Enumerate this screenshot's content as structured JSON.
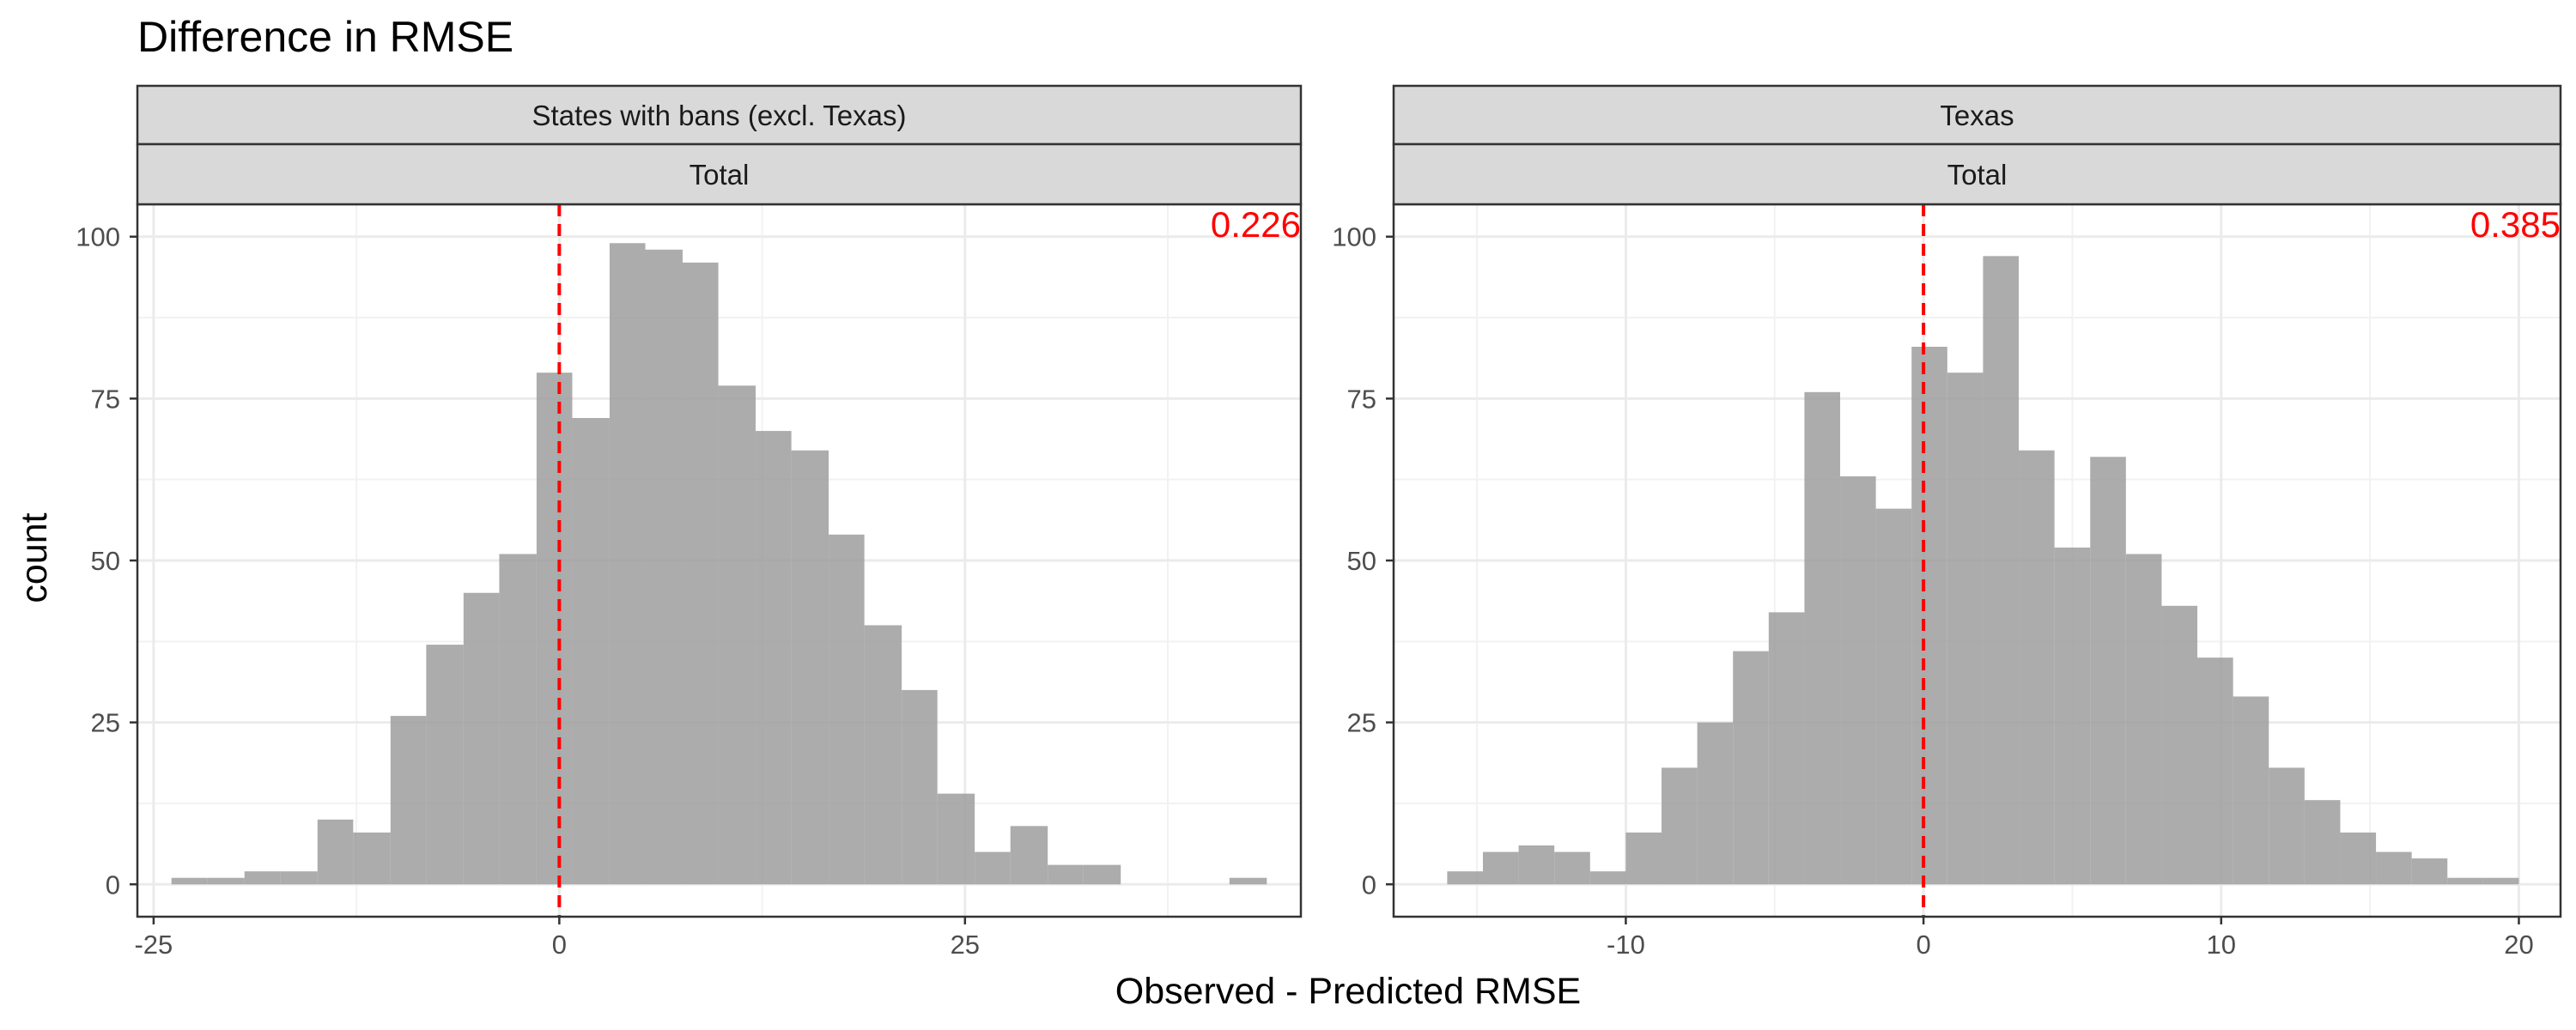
{
  "chart_data": {
    "type": "bar",
    "title": "Difference in RMSE",
    "xlabel": "Observed - Predicted RMSE",
    "ylabel": "count",
    "grid": true,
    "colors": {
      "bar": "#9e9e9e",
      "reference_line": "#ff0000",
      "annotation": "#ff0000",
      "strip": "#d9d9d9"
    },
    "panels": [
      {
        "strip_labels": [
          "States with bans (excl. Texas)",
          "Total"
        ],
        "annotation": "0.226",
        "xlim": [
          -26.0,
          45.7
        ],
        "ylim": [
          -5,
          105
        ],
        "x_ticks": [
          -25,
          0,
          25
        ],
        "x_tick_labels": [
          "-25",
          "0",
          "25"
        ],
        "y_ticks": [
          0,
          25,
          50,
          75,
          100
        ],
        "y_tick_labels": [
          "0",
          "25",
          "50",
          "75",
          "100"
        ],
        "reference_x": 0,
        "bin_edges": [
          -23.9,
          -21.7,
          -19.4,
          -17.2,
          -14.9,
          -12.7,
          -10.4,
          -8.2,
          -5.9,
          -3.7,
          -1.4,
          0.8,
          3.1,
          5.3,
          7.6,
          9.8,
          12.1,
          14.3,
          16.6,
          18.8,
          21.1,
          23.3,
          25.6,
          27.8,
          30.1,
          32.3,
          34.6,
          36.8,
          39.1,
          41.3,
          43.6
        ],
        "counts": [
          1,
          1,
          2,
          2,
          10,
          8,
          26,
          37,
          45,
          51,
          79,
          72,
          99,
          98,
          96,
          77,
          70,
          67,
          54,
          40,
          30,
          14,
          5,
          9,
          3,
          3,
          0,
          0,
          0,
          1
        ]
      },
      {
        "strip_labels": [
          "Texas",
          "Total"
        ],
        "annotation": "0.385",
        "xlim": [
          -17.8,
          21.4
        ],
        "ylim": [
          -5,
          105
        ],
        "x_ticks": [
          -10,
          0,
          10,
          20
        ],
        "x_tick_labels": [
          "-10",
          "0",
          "10",
          "20"
        ],
        "y_ticks": [
          0,
          25,
          50,
          75,
          100
        ],
        "y_tick_labels": [
          "0",
          "25",
          "50",
          "75",
          "100"
        ],
        "reference_x": 0,
        "bin_edges": [
          -16.0,
          -14.8,
          -13.6,
          -12.4,
          -11.2,
          -10.0,
          -8.8,
          -7.6,
          -6.4,
          -5.2,
          -4.0,
          -2.8,
          -1.6,
          -0.4,
          0.8,
          2.0,
          3.2,
          4.4,
          5.6,
          6.8,
          8.0,
          9.2,
          10.4,
          11.6,
          12.8,
          14.0,
          15.2,
          16.4,
          17.6,
          18.8,
          20.0
        ],
        "counts": [
          2,
          5,
          6,
          5,
          2,
          8,
          18,
          25,
          36,
          42,
          76,
          63,
          58,
          83,
          79,
          97,
          67,
          52,
          66,
          51,
          43,
          35,
          29,
          18,
          13,
          8,
          5,
          4,
          1,
          1
        ]
      }
    ]
  }
}
